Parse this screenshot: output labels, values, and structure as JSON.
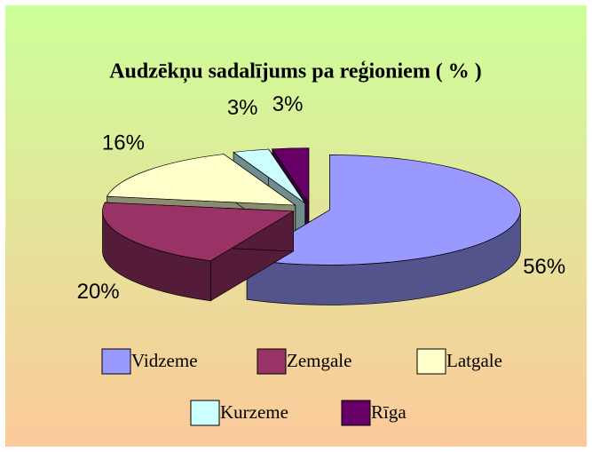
{
  "chart_data": {
    "type": "pie",
    "title": "Audzēkņu sadalījums pa reģioniem ( % )",
    "categories": [
      "Vidzeme",
      "Zemgale",
      "Latgale",
      "Kurzeme",
      "Rīga"
    ],
    "values": [
      56,
      20,
      16,
      3,
      3
    ],
    "value_labels": [
      "56%",
      "20%",
      "16%",
      "3%",
      "3%"
    ],
    "colors": [
      "#9999ff",
      "#993366",
      "#ffffcc",
      "#ccffff",
      "#660066"
    ],
    "legend": "bottom"
  }
}
